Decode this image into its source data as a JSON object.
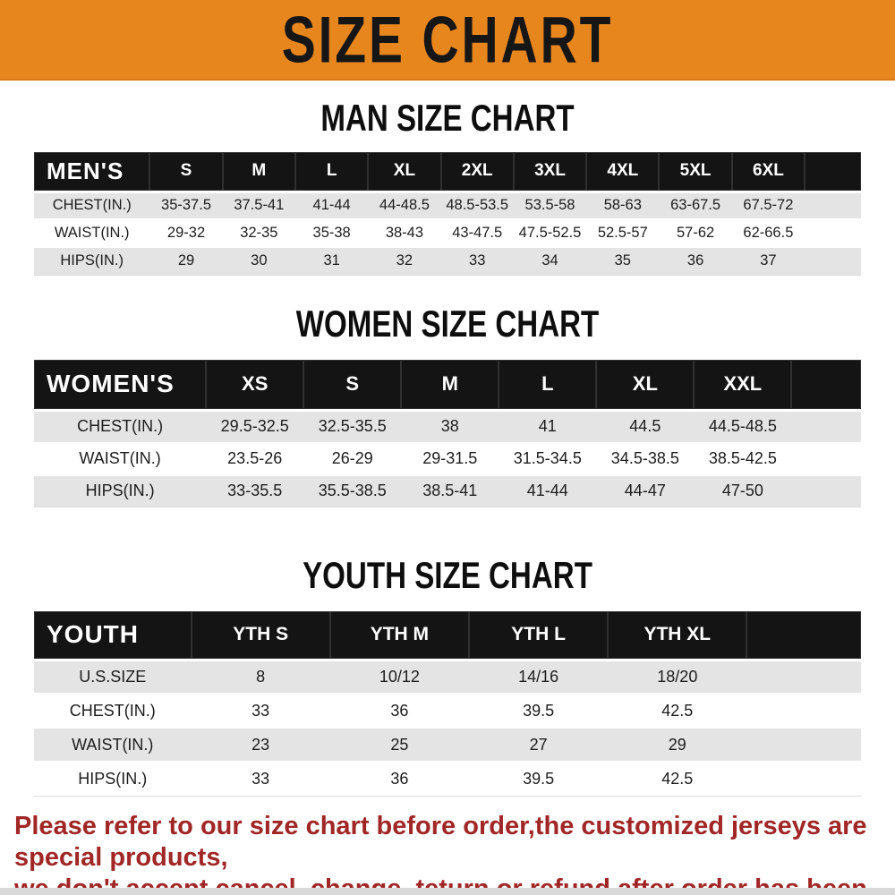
{
  "banner": {
    "title": "SIZE CHART",
    "bg_color": "#E8861E",
    "text_color": "#161616"
  },
  "colors": {
    "table_header_bg": "#141414",
    "table_row_alt": "#E4E4E4",
    "footer_text": "#A12626"
  },
  "sections": [
    {
      "heading": "MAN SIZE CHART",
      "table": {
        "header": [
          "MEN'S",
          "S",
          "M",
          "L",
          "XL",
          "2XL",
          "3XL",
          "4XL",
          "5XL",
          "6XL"
        ],
        "rows": [
          {
            "label": "CHEST(IN.)",
            "values": [
              "35-37.5",
              "37.5-41",
              "41-44",
              "44-48.5",
              "48.5-53.5",
              "53.5-58",
              "58-63",
              "63-67.5",
              "67.5-72"
            ]
          },
          {
            "label": "WAIST(IN.)",
            "values": [
              "29-32",
              "32-35",
              "35-38",
              "38-43",
              "43-47.5",
              "47.5-52.5",
              "52.5-57",
              "57-62",
              "62-66.5"
            ]
          },
          {
            "label": "HIPS(IN.)",
            "values": [
              "29",
              "30",
              "31",
              "32",
              "33",
              "34",
              "35",
              "36",
              "37"
            ]
          }
        ]
      }
    },
    {
      "heading": "WOMEN SIZE CHART",
      "table": {
        "header": [
          "WOMEN'S",
          "XS",
          "S",
          "M",
          "L",
          "XL",
          "XXL"
        ],
        "rows": [
          {
            "label": "CHEST(IN.)",
            "values": [
              "29.5-32.5",
              "32.5-35.5",
              "38",
              "41",
              "44.5",
              "44.5-48.5"
            ]
          },
          {
            "label": "WAIST(IN.)",
            "values": [
              "23.5-26",
              "26-29",
              "29-31.5",
              "31.5-34.5",
              "34.5-38.5",
              "38.5-42.5"
            ]
          },
          {
            "label": "HIPS(IN.)",
            "values": [
              "33-35.5",
              "35.5-38.5",
              "38.5-41",
              "41-44",
              "44-47",
              "47-50"
            ]
          }
        ]
      }
    },
    {
      "heading": "YOUTH SIZE CHART",
      "table": {
        "header": [
          "YOUTH",
          "YTH S",
          "YTH M",
          "YTH L",
          "YTH XL"
        ],
        "rows": [
          {
            "label": "U.S.SIZE",
            "values": [
              "8",
              "10/12",
              "14/16",
              "18/20"
            ]
          },
          {
            "label": "CHEST(IN.)",
            "values": [
              "33",
              "36",
              "39.5",
              "42.5"
            ]
          },
          {
            "label": "WAIST(IN.)",
            "values": [
              "23",
              "25",
              "27",
              "29"
            ]
          },
          {
            "label": "HIPS(IN.)",
            "values": [
              "33",
              "36",
              "39.5",
              "42.5"
            ]
          }
        ]
      }
    }
  ],
  "footer": {
    "line1": "Please refer to our size chart before order,the customized jerseys are special products,",
    "line2": "we don't accept cancel, change, teturn or refund after order has been placed!"
  }
}
